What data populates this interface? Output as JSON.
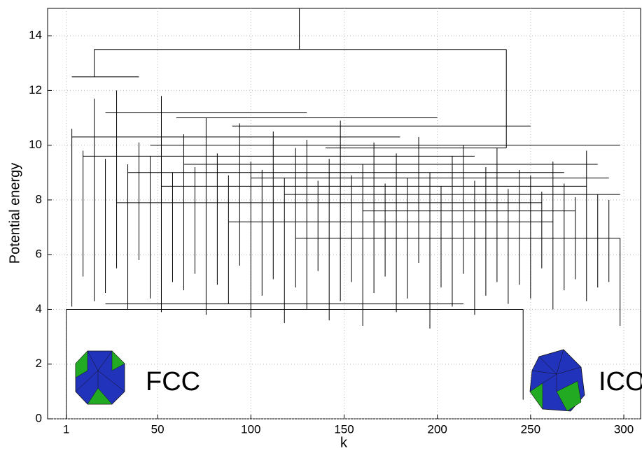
{
  "chart_data": {
    "type": "disconnectivity",
    "xlabel": "k",
    "ylabel": "Potential energy",
    "xlim": [
      -9,
      309
    ],
    "ylim": [
      0,
      15
    ],
    "xticks": [
      1,
      50,
      100,
      150,
      200,
      250,
      300
    ],
    "yticks": [
      0,
      2,
      4,
      6,
      8,
      10,
      12,
      14
    ],
    "grid": true,
    "color": "#000000",
    "annotations": [
      "FCC",
      "ICO"
    ],
    "leaves": {
      "x": [
        4,
        10,
        16,
        22,
        28,
        34,
        40,
        46,
        52,
        58,
        64,
        70,
        76,
        82,
        88,
        94,
        100,
        106,
        112,
        118,
        124,
        130,
        136,
        142,
        148,
        154,
        160,
        166,
        172,
        178,
        184,
        190,
        196,
        202,
        208,
        214,
        220,
        226,
        232,
        238,
        244,
        250,
        256,
        262,
        268,
        274,
        280,
        286,
        292,
        298
      ],
      "top": [
        10.6,
        9.8,
        11.7,
        9.5,
        12.0,
        9.3,
        10.1,
        9.6,
        11.8,
        9.0,
        10.4,
        9.2,
        11.0,
        9.7,
        8.9,
        10.8,
        9.4,
        9.1,
        10.5,
        8.8,
        9.9,
        10.2,
        8.7,
        9.5,
        10.9,
        8.9,
        9.3,
        10.1,
        8.6,
        9.7,
        8.8,
        10.3,
        9.0,
        8.5,
        9.6,
        10.0,
        8.7,
        9.2,
        9.9,
        8.4,
        9.1,
        8.9,
        8.3,
        9.4,
        8.6,
        8.1,
        9.8,
        8.2,
        8.0,
        6.6
      ],
      "bottom": [
        4.1,
        5.2,
        4.3,
        4.6,
        5.5,
        4.0,
        5.8,
        4.4,
        3.9,
        5.0,
        4.7,
        5.3,
        3.8,
        4.9,
        4.2,
        5.6,
        3.7,
        4.5,
        5.1,
        3.5,
        4.8,
        4.0,
        5.4,
        3.6,
        4.3,
        5.0,
        3.4,
        4.6,
        5.2,
        3.9,
        4.4,
        5.7,
        3.3,
        4.8,
        4.1,
        5.3,
        3.8,
        4.5,
        5.0,
        4.2,
        4.9,
        4.4,
        5.5,
        4.0,
        4.7,
        5.1,
        4.3,
        4.8,
        5.0,
        3.4
      ]
    },
    "stems": {
      "x": [
        126,
        16,
        237,
        1,
        246
      ],
      "top": [
        15,
        13.5,
        13.5,
        4.0,
        4.0
      ],
      "bottom": [
        13.5,
        12.5,
        9.9,
        0,
        0.7
      ]
    },
    "links": {
      "x1": [
        16,
        4,
        22,
        60,
        90,
        4,
        46,
        140,
        10,
        64,
        34,
        100,
        52,
        118,
        28,
        160,
        88,
        124,
        22,
        1
      ],
      "x2": [
        237,
        40,
        130,
        200,
        250,
        180,
        298,
        237,
        220,
        286,
        268,
        292,
        280,
        298,
        256,
        274,
        262,
        298,
        214,
        246
      ],
      "y": [
        13.5,
        12.5,
        11.2,
        11.0,
        10.7,
        10.3,
        10.0,
        9.9,
        9.6,
        9.3,
        9.0,
        8.8,
        8.5,
        8.2,
        7.9,
        7.6,
        7.2,
        6.6,
        4.2,
        4.0
      ]
    }
  }
}
